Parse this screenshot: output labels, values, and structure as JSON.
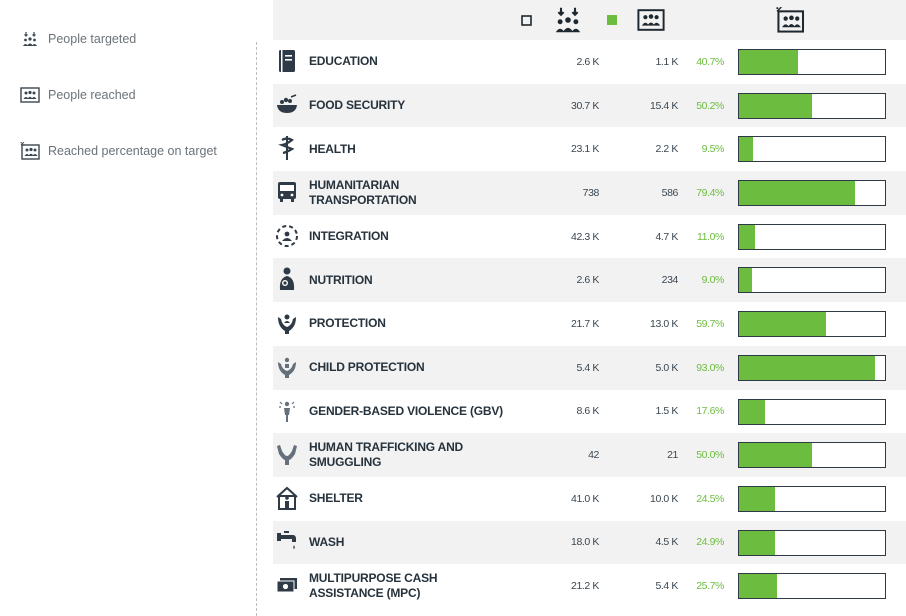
{
  "legend": {
    "items": [
      {
        "label": "People targeted",
        "icon": "people-targeted-icon"
      },
      {
        "label": "People reached",
        "icon": "people-reached-icon"
      },
      {
        "label": "Reached percentage on target",
        "icon": "reached-percentage-icon"
      }
    ]
  },
  "colors": {
    "accent": "#6cbc3f",
    "border": "#2e3a45",
    "alt_row": "#f2f2f2",
    "text": "#26323c"
  },
  "chart_data": {
    "type": "bar",
    "categories": [
      "EDUCATION",
      "FOOD SECURITY",
      "HEALTH",
      "HUMANITARIAN TRANSPORTATION",
      "INTEGRATION",
      "NUTRITION",
      "PROTECTION",
      "CHILD PROTECTION",
      "GENDER-BASED VIOLENCE (GBV)",
      "HUMAN TRAFFICKING AND SMUGGLING",
      "SHELTER",
      "WASH",
      "MULTIPURPOSE CASH ASSISTANCE (MPC)"
    ],
    "icons": [
      "book-icon",
      "bowl-icon",
      "caduceus-icon",
      "bus-icon",
      "integration-icon",
      "nutrition-icon",
      "protection-icon",
      "child-protection-icon",
      "gbv-icon",
      "trafficking-icon",
      "shelter-icon",
      "tap-icon",
      "cash-icon"
    ],
    "targeted": [
      "2.6 K",
      "30.7 K",
      "23.1 K",
      "738",
      "42.3 K",
      "2.6 K",
      "21.7 K",
      "5.4 K",
      "8.6 K",
      "42",
      "41.0 K",
      "18.0 K",
      "21.2 K"
    ],
    "reached": [
      "1.1 K",
      "15.4 K",
      "2.2 K",
      "586",
      "4.7 K",
      "234",
      "13.0 K",
      "5.0 K",
      "1.5 K",
      "21",
      "10.0 K",
      "4.5 K",
      "5.4 K"
    ],
    "percent_labels": [
      "40.7%",
      "50.2%",
      "9.5%",
      "79.4%",
      "11.0%",
      "9.0%",
      "59.7%",
      "93.0%",
      "17.6%",
      "50.0%",
      "24.5%",
      "24.9%",
      "25.7%"
    ],
    "values": [
      40.7,
      50.2,
      9.5,
      79.4,
      11.0,
      9.0,
      59.7,
      93.0,
      17.6,
      50.0,
      24.5,
      24.9,
      25.7
    ],
    "ylim": [
      0,
      100
    ]
  }
}
